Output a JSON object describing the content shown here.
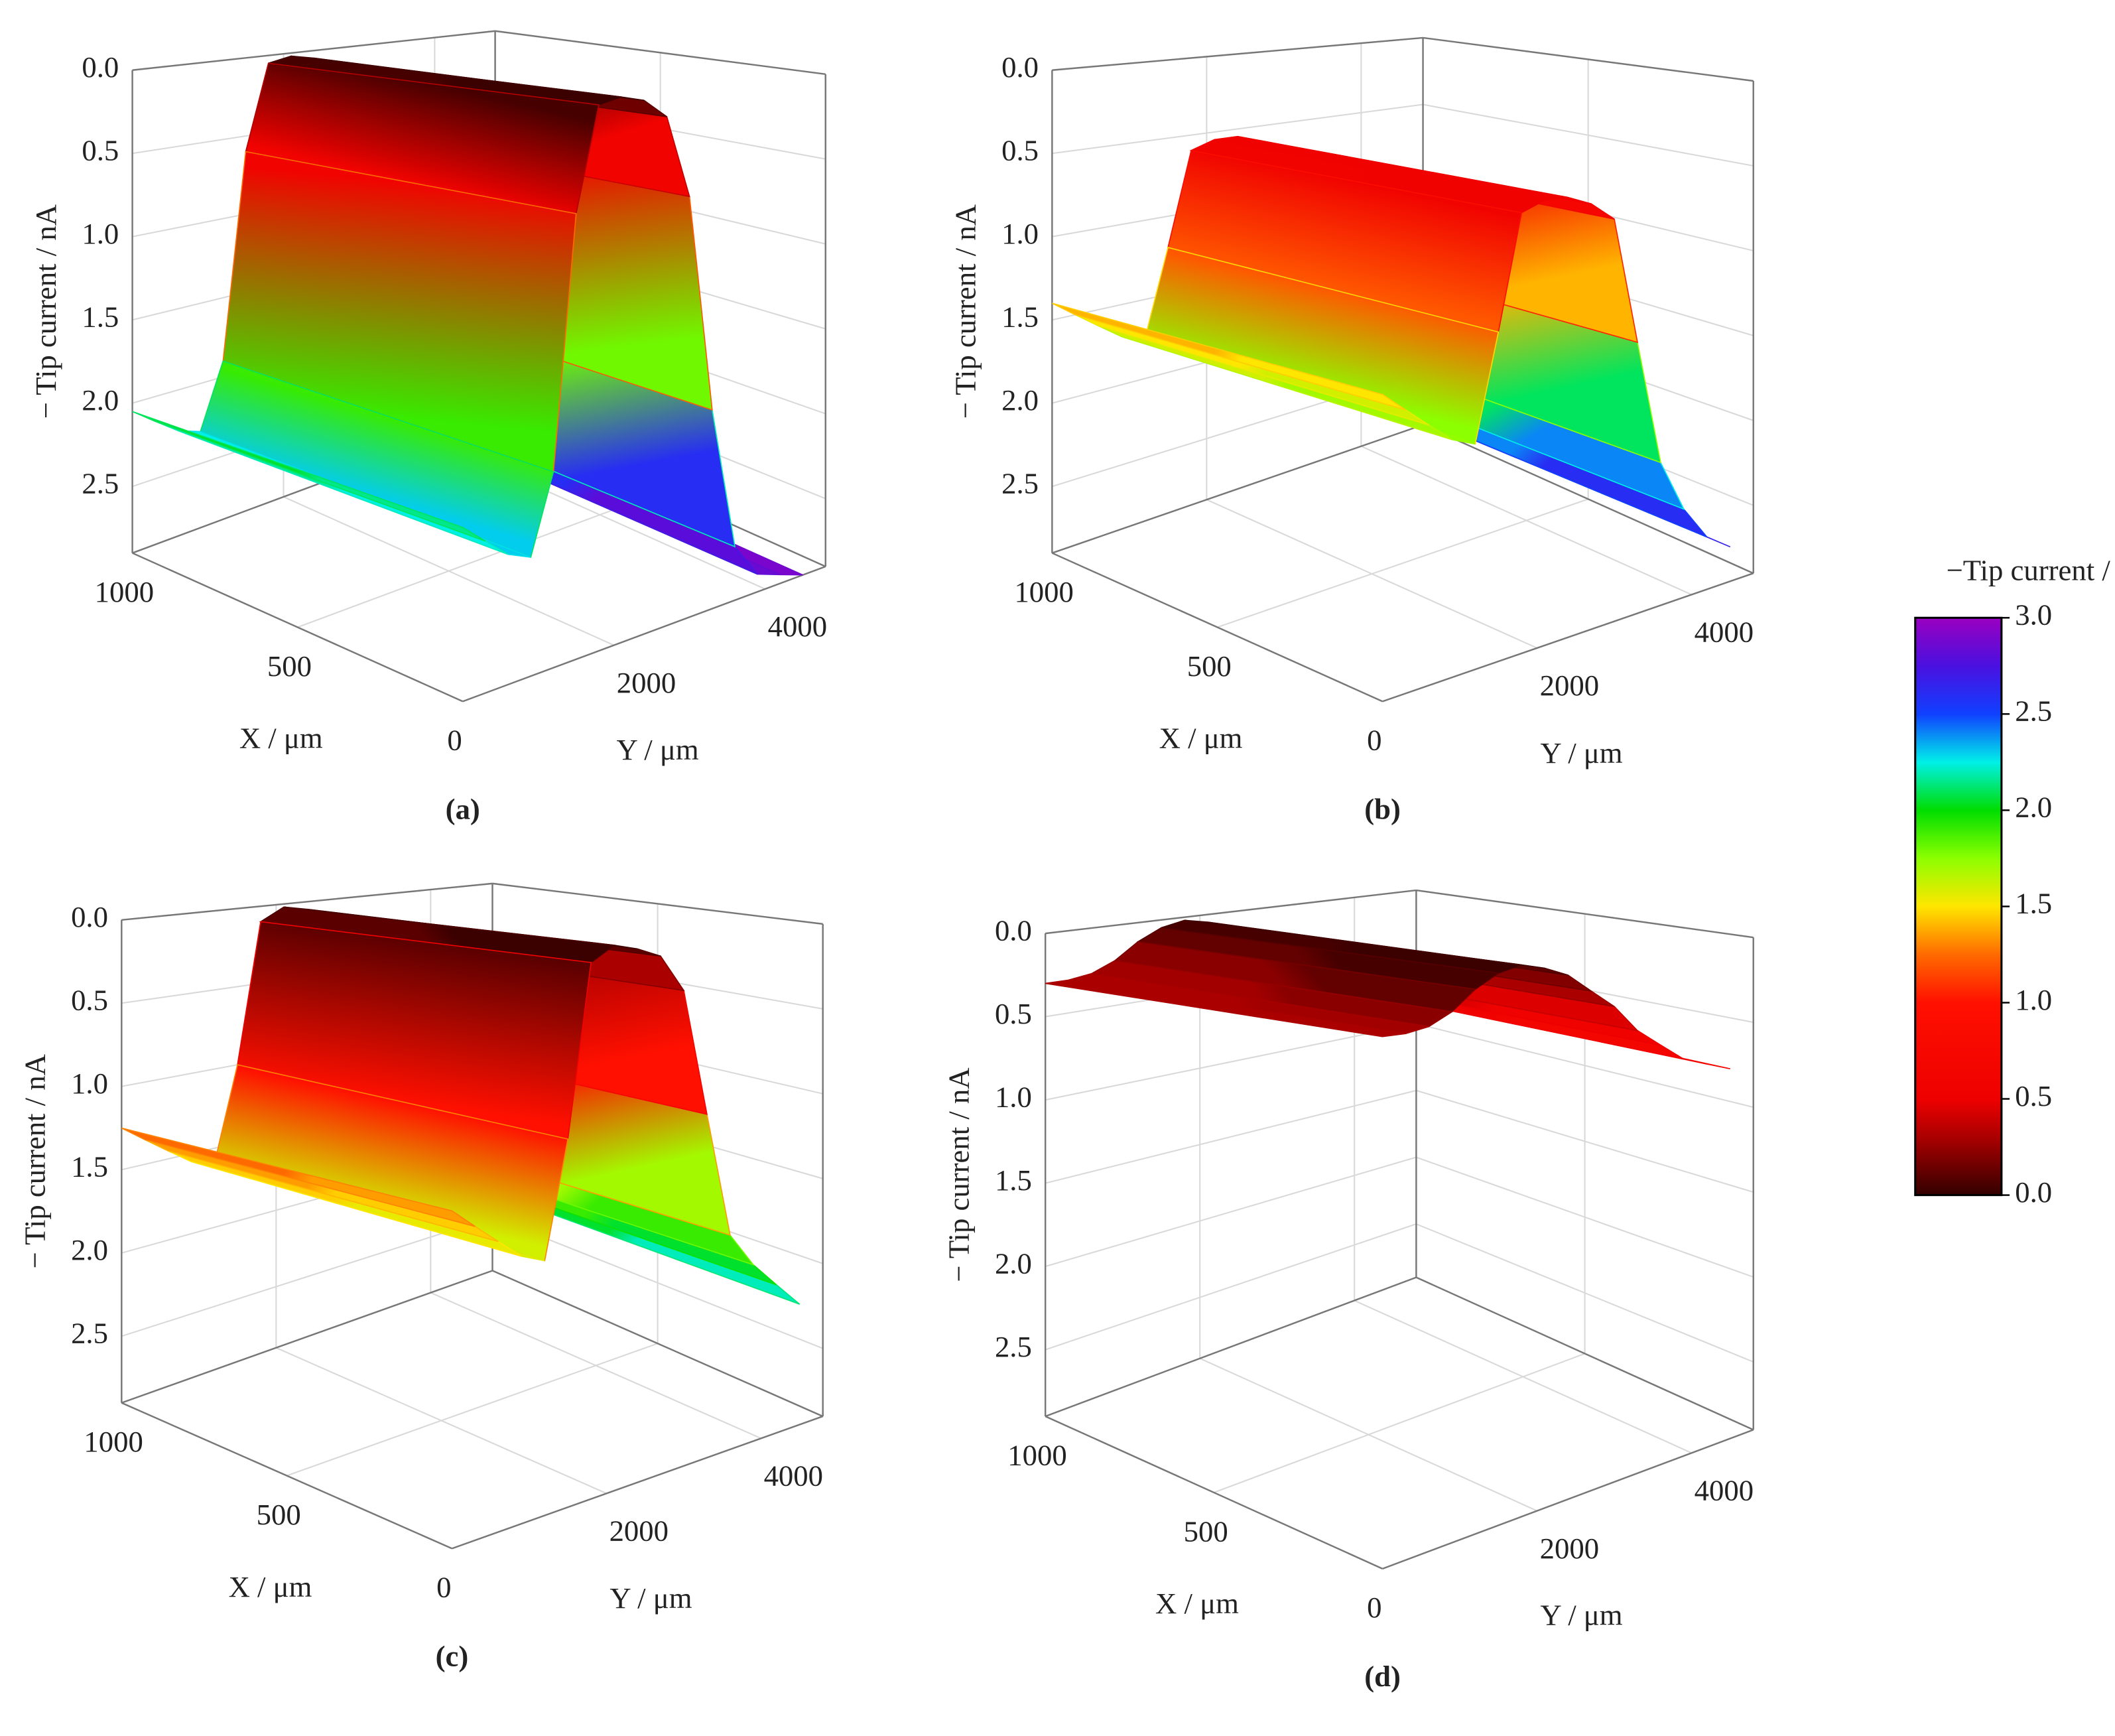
{
  "chart_data": [
    {
      "type": "surface",
      "label": "(a)",
      "xlabel": "X / μm",
      "ylabel": "Y / μm",
      "zlabel": "− Tip current / nA",
      "xlim": [
        0,
        1000
      ],
      "xticks": [
        0,
        500,
        1000
      ],
      "ylim": [
        0,
        4800
      ],
      "yticks": [
        2000,
        4000
      ],
      "zlim": [
        0,
        2.9
      ],
      "zticks": [
        {
          "value": 0,
          "label": "0.0"
        },
        {
          "value": 0.5,
          "label": "0.5"
        },
        {
          "value": 1,
          "label": "1.0"
        },
        {
          "value": 1.5,
          "label": "1.5"
        },
        {
          "value": 2,
          "label": "2.0"
        },
        {
          "value": 2.5,
          "label": "2.5"
        }
      ],
      "y": [
        0,
        300,
        600,
        900,
        1200,
        1500,
        1800,
        2100,
        2400,
        2700,
        3000,
        3300,
        3600,
        3900,
        4200,
        4500
      ],
      "values": [
        2.05,
        2.15,
        2.25,
        2.3,
        1.9,
        0.6,
        0.05,
        0.02,
        0.05,
        0.15,
        0.6,
        1.8,
        2.6,
        2.8,
        2.85,
        2.9
      ],
      "grid": true
    },
    {
      "type": "surface",
      "label": "(b)",
      "xlabel": "X / μm",
      "ylabel": "Y / μm",
      "zlabel": "− Tip current / nA",
      "xlim": [
        0,
        1000
      ],
      "xticks": [
        0,
        500,
        1000
      ],
      "ylim": [
        0,
        4800
      ],
      "yticks": [
        2000,
        4000
      ],
      "zlim": [
        0,
        2.9
      ],
      "zticks": [
        {
          "value": 0,
          "label": "0.0"
        },
        {
          "value": 0.5,
          "label": "0.5"
        },
        {
          "value": 1,
          "label": "1.0"
        },
        {
          "value": 1.5,
          "label": "1.5"
        },
        {
          "value": 2,
          "label": "2.0"
        },
        {
          "value": 2.5,
          "label": "2.5"
        }
      ],
      "y": [
        0,
        300,
        600,
        900,
        1200,
        1500,
        1800,
        2100,
        2400,
        2700,
        3000,
        3300,
        3600,
        3900,
        4200,
        4500
      ],
      "values": [
        1.4,
        1.5,
        1.6,
        1.7,
        1.75,
        1.2,
        0.6,
        0.55,
        0.55,
        0.6,
        0.7,
        1.4,
        2.1,
        2.4,
        2.6,
        2.7
      ],
      "grid": true
    },
    {
      "type": "surface",
      "label": "(c)",
      "xlabel": "X / μm",
      "ylabel": "Y / μm",
      "zlabel": "− Tip current / nA",
      "xlim": [
        0,
        1000
      ],
      "xticks": [
        0,
        500,
        1000
      ],
      "ylim": [
        0,
        4800
      ],
      "yticks": [
        2000,
        4000
      ],
      "zlim": [
        0,
        2.9
      ],
      "zticks": [
        {
          "value": 0,
          "label": "0.0"
        },
        {
          "value": 0.5,
          "label": "0.5"
        },
        {
          "value": 1,
          "label": "1.0"
        },
        {
          "value": 1.5,
          "label": "1.5"
        },
        {
          "value": 2,
          "label": "2.0"
        },
        {
          "value": 2.5,
          "label": "2.5"
        }
      ],
      "y": [
        0,
        300,
        600,
        900,
        1200,
        1500,
        1800,
        2100,
        2400,
        2700,
        3000,
        3300,
        3600,
        3900,
        4200,
        4500
      ],
      "values": [
        1.25,
        1.35,
        1.45,
        1.55,
        1.6,
        1.0,
        0.1,
        0.02,
        0.05,
        0.1,
        0.3,
        1.0,
        1.7,
        1.9,
        2.05,
        2.2
      ],
      "grid": true
    },
    {
      "type": "surface",
      "label": "(d)",
      "xlabel": "X / μm",
      "ylabel": "Y / μm",
      "zlabel": "− Tip current / nA",
      "xlim": [
        0,
        1000
      ],
      "xticks": [
        0,
        500,
        1000
      ],
      "ylim": [
        0,
        4800
      ],
      "yticks": [
        2000,
        4000
      ],
      "zlim": [
        0,
        2.9
      ],
      "zticks": [
        {
          "value": 0,
          "label": "0.0"
        },
        {
          "value": 0.5,
          "label": "0.5"
        },
        {
          "value": 1,
          "label": "1.0"
        },
        {
          "value": 1.5,
          "label": "1.5"
        },
        {
          "value": 2,
          "label": "2.0"
        },
        {
          "value": 2.5,
          "label": "2.5"
        }
      ],
      "y": [
        0,
        300,
        600,
        900,
        1200,
        1500,
        1800,
        2100,
        2400,
        2700,
        3000,
        3300,
        3600,
        3900,
        4200,
        4500
      ],
      "values": [
        0.3,
        0.3,
        0.28,
        0.22,
        0.12,
        0.05,
        0.02,
        0.05,
        0.1,
        0.2,
        0.3,
        0.45,
        0.55,
        0.65,
        0.7,
        0.75
      ],
      "grid": true
    }
  ],
  "colorbar": {
    "title": "−Tip current / nA",
    "lim": [
      0,
      3
    ],
    "ticks": [
      {
        "value": 0,
        "label": "0.0"
      },
      {
        "value": 0.5,
        "label": "0.5"
      },
      {
        "value": 1,
        "label": "1.0"
      },
      {
        "value": 1.5,
        "label": "1.5"
      },
      {
        "value": 2,
        "label": "2.0"
      },
      {
        "value": 2.5,
        "label": "2.5"
      },
      {
        "value": 3,
        "label": "3.0"
      }
    ],
    "colorscale": [
      {
        "value": 0,
        "color": "#330000"
      },
      {
        "value": 0.3,
        "color": "#aa0000"
      },
      {
        "value": 0.5,
        "color": "#ee0000"
      },
      {
        "value": 1,
        "color": "#ff1000"
      },
      {
        "value": 1.25,
        "color": "#ff6a00"
      },
      {
        "value": 1.5,
        "color": "#ffe600"
      },
      {
        "value": 1.75,
        "color": "#8cff00"
      },
      {
        "value": 2,
        "color": "#00dd00"
      },
      {
        "value": 2.25,
        "color": "#00f0e8"
      },
      {
        "value": 2.5,
        "color": "#1040ff"
      },
      {
        "value": 2.75,
        "color": "#4a10e0"
      },
      {
        "value": 3,
        "color": "#9a00c0"
      }
    ]
  }
}
